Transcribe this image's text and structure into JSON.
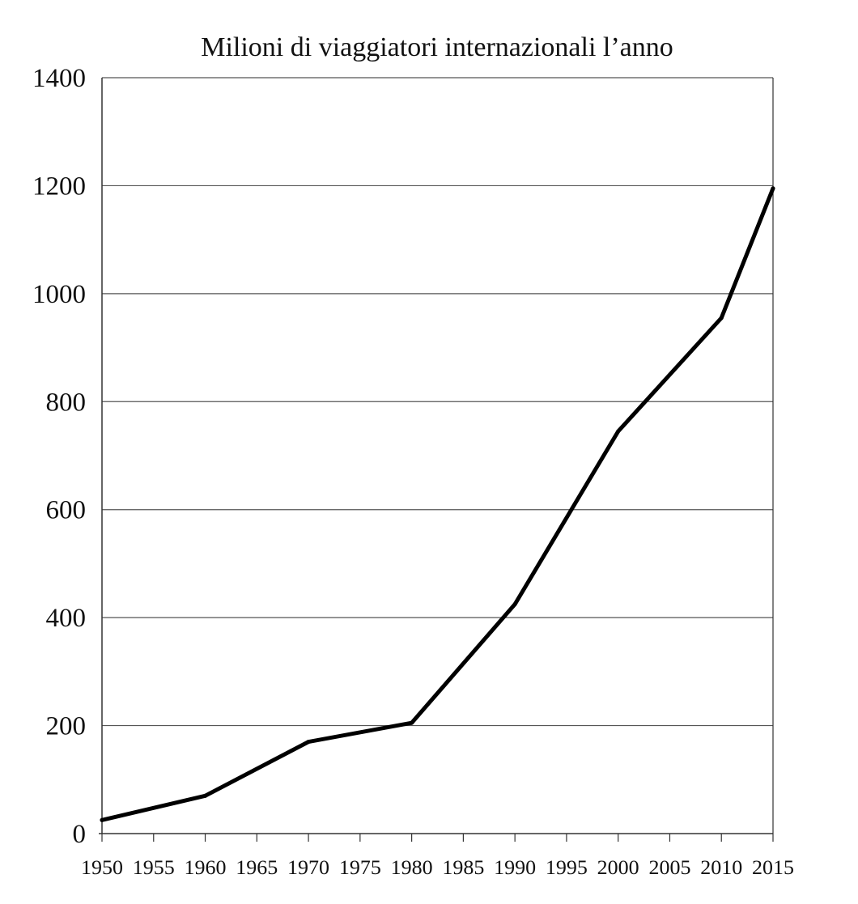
{
  "chart_data": {
    "type": "line",
    "title": "Milioni di viaggiatori internazionali l’anno",
    "xlabel": "",
    "ylabel": "",
    "x": [
      1950,
      1960,
      1970,
      1980,
      1990,
      2000,
      2010,
      2015
    ],
    "xlim": [
      1950,
      2015
    ],
    "ylim": [
      0,
      1400
    ],
    "xticks": [
      "1950",
      "1955",
      "1960",
      "1965",
      "1970",
      "1975",
      "1980",
      "1985",
      "1990",
      "1995",
      "2000",
      "2005",
      "2010",
      "2015"
    ],
    "yticks": [
      "0",
      "200",
      "400",
      "600",
      "800",
      "1000",
      "1200",
      "1400"
    ],
    "grid": "horizontal",
    "legend": "none",
    "series": [
      {
        "values": [
          25,
          70,
          170,
          205,
          425,
          745,
          955,
          1195
        ],
        "color": "#000000"
      }
    ]
  }
}
